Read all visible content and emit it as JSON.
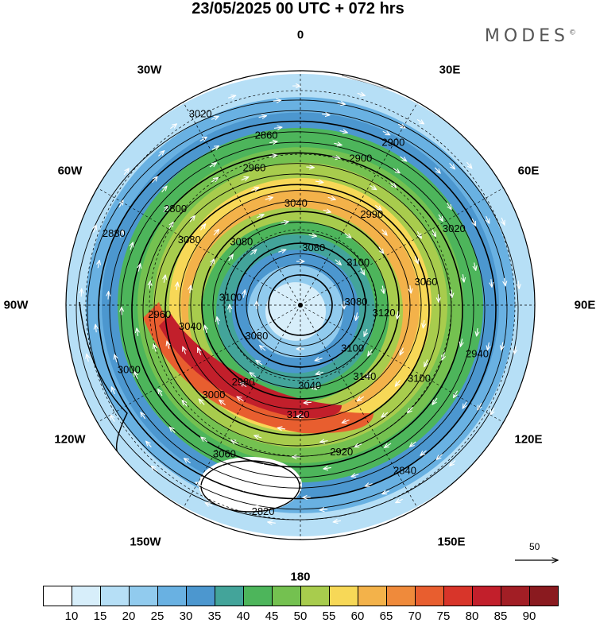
{
  "header": {
    "title": "23/05/2025  00 UTC  + 072 hrs",
    "brand": "MODES",
    "brand_mark": "©"
  },
  "map": {
    "projection": "south polar stereographic",
    "pole_marker": "south-pole-dot",
    "lon_labels": [
      "0",
      "30E",
      "60E",
      "90E",
      "120E",
      "150E",
      "180",
      "150W",
      "120W",
      "90W",
      "60W",
      "30W"
    ],
    "contour_labels": [
      "3080",
      "3100",
      "3040",
      "2980",
      "3040",
      "3080",
      "2960",
      "2900",
      "3020",
      "2940",
      "2840",
      "2820",
      "3080",
      "3100",
      "3080",
      "3040",
      "2990",
      "3060",
      "3100",
      "2920",
      "3060",
      "3000",
      "2880",
      "3020",
      "3080",
      "3100",
      "3120",
      "3140",
      "3120",
      "3000",
      "2960",
      "2800",
      "2860",
      "2900"
    ],
    "wind_speed_shading": "isotach filled contours",
    "colors": {
      "land": "#efefef",
      "ocean": "#ffffff",
      "contour": "#000000",
      "vector": "#ffffff"
    }
  },
  "colorbar": {
    "ticks": [
      "10",
      "15",
      "20",
      "25",
      "30",
      "35",
      "40",
      "45",
      "50",
      "55",
      "60",
      "65",
      "70",
      "75",
      "80",
      "85",
      "90"
    ],
    "colors": [
      "#ffffff",
      "#d7eefa",
      "#b6dff6",
      "#91cbee",
      "#69b1e2",
      "#4c97cf",
      "#43a49a",
      "#4db55b",
      "#74c150",
      "#a8cc4d",
      "#f7d857",
      "#f3b24a",
      "#ef8a3b",
      "#e85e2f",
      "#d8352a",
      "#c21f2b",
      "#a21e25",
      "#8a1a1f"
    ]
  },
  "reference_vector": {
    "value": "50"
  }
}
